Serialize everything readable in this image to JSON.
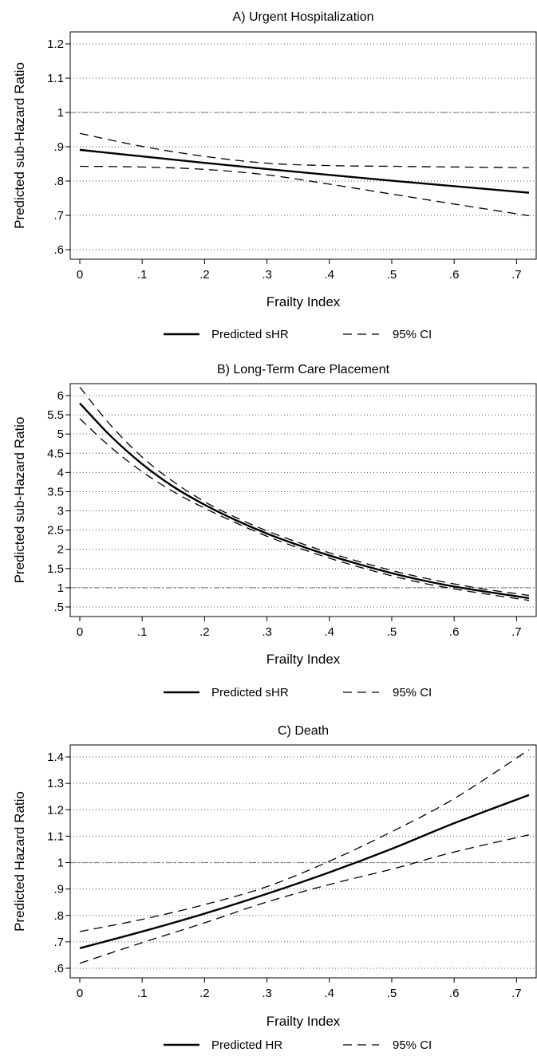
{
  "chart_data": [
    {
      "type": "line",
      "title": "A) Urgent Hospitalization",
      "xlabel": "Frailty Index",
      "ylabel": "Predicted sub-Hazard Ratio",
      "xlim": [
        0,
        0.72
      ],
      "ylim": [
        0.6,
        1.2
      ],
      "x_ticks": [
        0,
        0.1,
        0.2,
        0.3,
        0.4,
        0.5,
        0.6,
        0.7
      ],
      "x_tick_labels": [
        "0",
        ".1",
        ".2",
        ".3",
        ".4",
        ".5",
        ".6",
        ".7"
      ],
      "y_ticks": [
        0.6,
        0.7,
        0.8,
        0.9,
        1.0,
        1.1,
        1.2
      ],
      "y_tick_labels": [
        ".6",
        ".7",
        ".8",
        ".9",
        "1",
        "1.1",
        "1.2"
      ],
      "grid": true,
      "reference_line": 1,
      "x": [
        0,
        0.1,
        0.2,
        0.3,
        0.4,
        0.5,
        0.6,
        0.72
      ],
      "series": [
        {
          "name": "Predicted sHR",
          "role": "estimate",
          "values": [
            0.891,
            0.872,
            0.853,
            0.835,
            0.818,
            0.801,
            0.785,
            0.766
          ]
        },
        {
          "name": "95% CI",
          "role": "upper",
          "values": [
            0.939,
            0.901,
            0.872,
            0.852,
            0.845,
            0.843,
            0.841,
            0.839
          ]
        },
        {
          "name": "95% CI",
          "role": "lower",
          "values": [
            0.843,
            0.841,
            0.834,
            0.818,
            0.791,
            0.762,
            0.733,
            0.699
          ]
        }
      ],
      "legend": {
        "placement": "bottom",
        "entries": [
          {
            "label": "Predicted sHR",
            "style": "solid"
          },
          {
            "label": "95% CI",
            "style": "dashed"
          }
        ]
      }
    },
    {
      "type": "line",
      "title": "B) Long-Term Care Placement",
      "xlabel": "Frailty Index",
      "ylabel": "Predicted sub-Hazard Ratio",
      "xlim": [
        0,
        0.72
      ],
      "ylim": [
        0.5,
        6
      ],
      "x_ticks": [
        0,
        0.1,
        0.2,
        0.3,
        0.4,
        0.5,
        0.6,
        0.7
      ],
      "x_tick_labels": [
        "0",
        ".1",
        ".2",
        ".3",
        ".4",
        ".5",
        ".6",
        ".7"
      ],
      "y_ticks": [
        0.5,
        1,
        1.5,
        2,
        2.5,
        3,
        3.5,
        4,
        4.5,
        5,
        5.5,
        6
      ],
      "y_tick_labels": [
        ".5",
        "1",
        "1.5",
        "2",
        "2.5",
        "3",
        "3.5",
        "4",
        "4.5",
        "5",
        "5.5",
        "6"
      ],
      "grid": true,
      "reference_line": 1,
      "x": [
        0,
        0.05,
        0.1,
        0.15,
        0.2,
        0.25,
        0.3,
        0.35,
        0.4,
        0.45,
        0.5,
        0.55,
        0.6,
        0.65,
        0.72
      ],
      "series": [
        {
          "name": "Predicted sHR",
          "role": "estimate",
          "values": [
            5.8,
            4.94,
            4.22,
            3.63,
            3.16,
            2.76,
            2.41,
            2.11,
            1.84,
            1.6,
            1.38,
            1.19,
            1.03,
            0.9,
            0.73
          ]
        },
        {
          "name": "95% CI",
          "role": "upper",
          "values": [
            6.22,
            5.22,
            4.4,
            3.76,
            3.24,
            2.83,
            2.48,
            2.18,
            1.91,
            1.67,
            1.45,
            1.26,
            1.1,
            0.96,
            0.8
          ]
        },
        {
          "name": "95% CI",
          "role": "lower",
          "values": [
            5.4,
            4.65,
            4.02,
            3.5,
            3.07,
            2.69,
            2.34,
            2.04,
            1.77,
            1.53,
            1.31,
            1.12,
            0.97,
            0.84,
            0.67
          ]
        }
      ],
      "legend": {
        "placement": "bottom",
        "entries": [
          {
            "label": "Predicted sHR",
            "style": "solid"
          },
          {
            "label": "95% CI",
            "style": "dashed"
          }
        ]
      }
    },
    {
      "type": "line",
      "title": "C) Death",
      "xlabel": "Frailty Index",
      "ylabel": "Predicted Hazard Ratio",
      "xlim": [
        0,
        0.72
      ],
      "ylim": [
        0.6,
        1.4
      ],
      "x_ticks": [
        0,
        0.1,
        0.2,
        0.3,
        0.4,
        0.5,
        0.6,
        0.7
      ],
      "x_tick_labels": [
        "0",
        ".1",
        ".2",
        ".3",
        ".4",
        ".5",
        ".6",
        ".7"
      ],
      "y_ticks": [
        0.6,
        0.7,
        0.8,
        0.9,
        1.0,
        1.1,
        1.2,
        1.3,
        1.4
      ],
      "y_tick_labels": [
        ".6",
        ".7",
        ".8",
        ".9",
        "1",
        "1.1",
        "1.2",
        "1.3",
        "1.4"
      ],
      "grid": true,
      "reference_line": 1,
      "x": [
        0,
        0.1,
        0.2,
        0.3,
        0.4,
        0.5,
        0.6,
        0.72
      ],
      "series": [
        {
          "name": "Predicted HR",
          "role": "estimate",
          "values": [
            0.676,
            0.739,
            0.807,
            0.882,
            0.963,
            1.052,
            1.149,
            1.256
          ]
        },
        {
          "name": "95% CI",
          "role": "upper",
          "values": [
            0.739,
            0.785,
            0.841,
            0.909,
            1.005,
            1.117,
            1.242,
            1.427
          ]
        },
        {
          "name": "95% CI",
          "role": "lower",
          "values": [
            0.619,
            0.697,
            0.772,
            0.851,
            0.917,
            0.975,
            1.04,
            1.105
          ]
        }
      ],
      "legend": {
        "placement": "bottom",
        "entries": [
          {
            "label": "Predicted HR",
            "style": "solid"
          },
          {
            "label": "95% CI",
            "style": "dashed"
          }
        ]
      }
    }
  ]
}
